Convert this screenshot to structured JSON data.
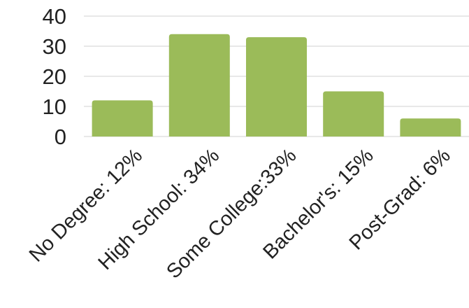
{
  "chart_data": {
    "type": "bar",
    "categories": [
      "No Degree: 12%",
      "High School: 34%",
      "Some College:33%",
      "Bachelor's: 15%",
      "Post-Grad: 6%"
    ],
    "values": [
      12,
      34,
      33,
      15,
      6
    ],
    "ylim": [
      0,
      40
    ],
    "yticks": [
      0,
      10,
      20,
      30,
      40
    ],
    "title": "",
    "xlabel": "",
    "ylabel": "",
    "grid": true,
    "legend": "none",
    "colors": {
      "bar": "#9bbb59",
      "grid": "#d9d9d9",
      "text": "#222222"
    }
  }
}
